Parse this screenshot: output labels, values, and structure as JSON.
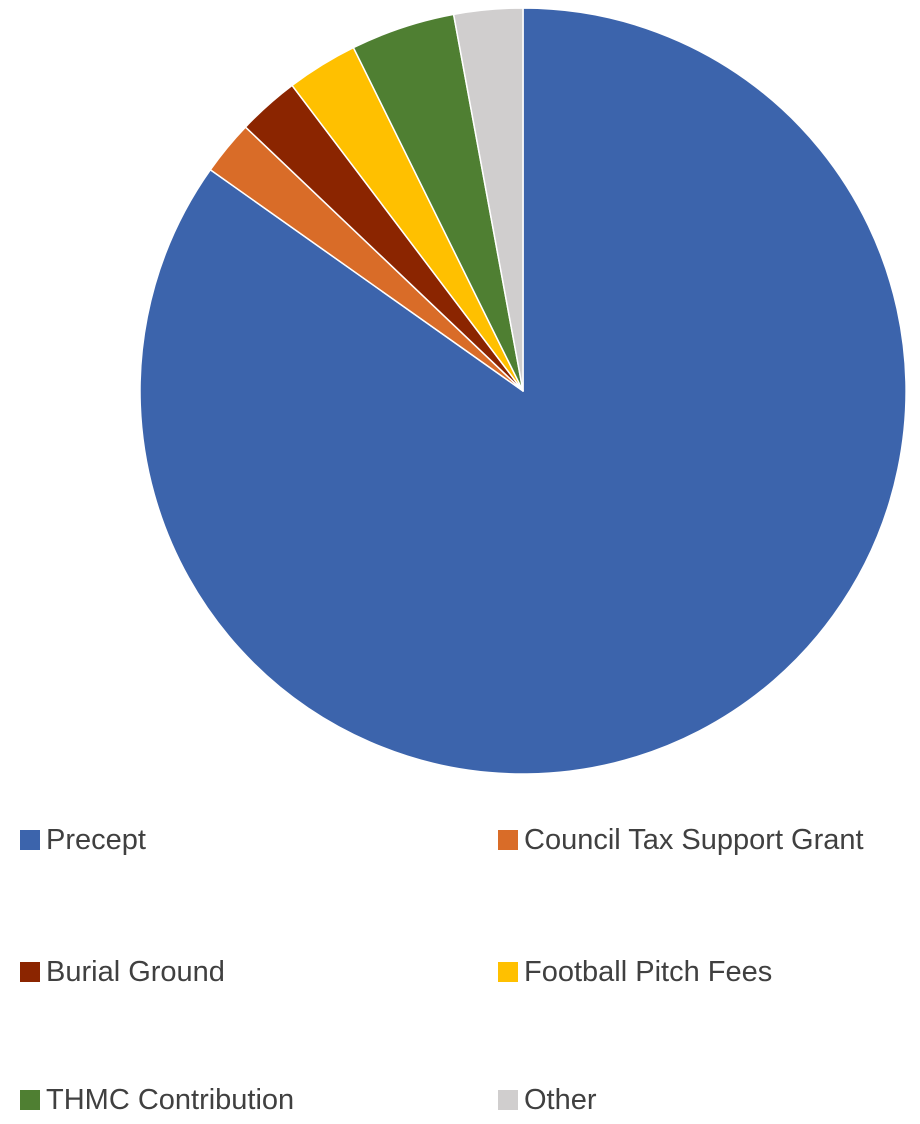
{
  "chart_data": {
    "type": "pie",
    "title": "",
    "legend_position": "bottom",
    "slices": [
      {
        "label": "Precept",
        "value": 84.8,
        "color": "#3c64ac"
      },
      {
        "label": "Council Tax Support Grant",
        "value": 2.3,
        "color": "#d96c28"
      },
      {
        "label": "Burial Ground",
        "value": 2.6,
        "color": "#8b2500"
      },
      {
        "label": "Football Pitch Fees",
        "value": 3.0,
        "color": "#ffc000"
      },
      {
        "label": "THMC Contribution",
        "value": 4.4,
        "color": "#4f7f32"
      },
      {
        "label": "Other",
        "value": 2.9,
        "color": "#d0cece"
      }
    ]
  }
}
